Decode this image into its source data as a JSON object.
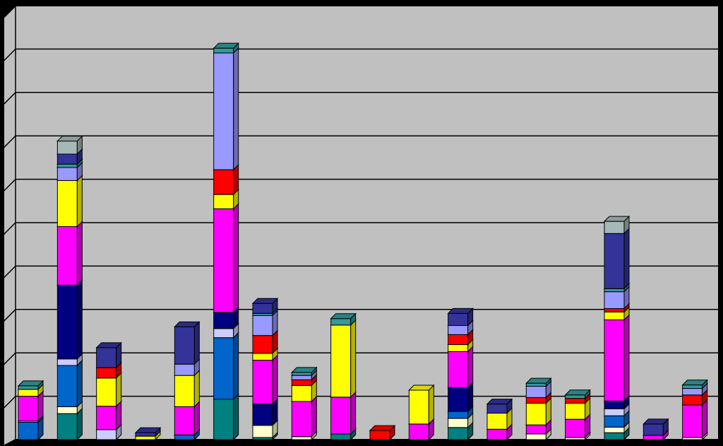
{
  "chart_data": {
    "type": "stacked-bar-3d",
    "categories": [
      null,
      null,
      null,
      null,
      null,
      null,
      null,
      null,
      null,
      null,
      null,
      null,
      null,
      null,
      null,
      null,
      null,
      null
    ],
    "ylim": [
      0,
      10
    ],
    "yticks": [
      0,
      1,
      2,
      3,
      4,
      5,
      6,
      7,
      8,
      9,
      10
    ],
    "grid": true,
    "tick_labels": false,
    "series": [
      {
        "color": "#008080",
        "values": [
          0,
          0.6,
          0,
          0,
          0,
          0.93,
          0.05,
          0,
          0.13,
          0,
          0,
          0.28,
          0,
          0,
          0,
          0.16,
          0,
          0
        ]
      },
      {
        "color": "#ffffcc",
        "values": [
          0,
          0.16,
          0,
          0,
          0,
          0,
          0.28,
          0.07,
          0,
          0,
          0,
          0.21,
          0,
          0.13,
          0.05,
          0.13,
          0,
          0.05
        ]
      },
      {
        "color": "#0066cc",
        "values": [
          0.4,
          0.95,
          0,
          0,
          0.11,
          1.42,
          0,
          0,
          0,
          0,
          0,
          0.16,
          0,
          0,
          0,
          0.26,
          0,
          0
        ]
      },
      {
        "color": "#ccccff",
        "values": [
          0.03,
          0.15,
          0.23,
          0,
          0,
          0.21,
          0,
          0,
          0,
          0,
          0,
          0,
          0,
          0,
          0,
          0.16,
          0,
          0
        ]
      },
      {
        "color": "#000080",
        "values": [
          0,
          1.7,
          0,
          0,
          0,
          0.37,
          0.49,
          0,
          0,
          0,
          0,
          0.55,
          0,
          0,
          0,
          0.18,
          0,
          0
        ]
      },
      {
        "color": "#ff00ff",
        "values": [
          0.57,
          1.35,
          0.54,
          0,
          0.65,
          2.39,
          1.01,
          0.81,
          0.85,
          0,
          0.36,
          0.83,
          0.24,
          0.21,
          0.42,
          1.87,
          0.1,
          0.75
        ]
      },
      {
        "color": "#ffff00",
        "values": [
          0.16,
          1.06,
          0.65,
          0.08,
          0.72,
          0.33,
          0.16,
          0.37,
          1.66,
          0,
          0.78,
          0.16,
          0.37,
          0.5,
          0.37,
          0.18,
          0,
          0
        ]
      },
      {
        "color": "#ff0000",
        "values": [
          0,
          0,
          0.24,
          0,
          0,
          0.57,
          0.41,
          0.13,
          0,
          0.21,
          0,
          0.23,
          0,
          0.13,
          0.11,
          0.08,
          0,
          0.23
        ]
      },
      {
        "color": "#9999ff",
        "values": [
          0,
          0.3,
          0,
          0,
          0.26,
          2.69,
          0.46,
          0.1,
          0,
          0,
          0,
          0.21,
          0,
          0.26,
          0,
          0.39,
          0,
          0.15
        ]
      },
      {
        "color": "#339999",
        "values": [
          0.08,
          0.08,
          0,
          0,
          0,
          0.11,
          0.05,
          0.07,
          0.15,
          0,
          0,
          0,
          0,
          0.07,
          0.08,
          0.07,
          0,
          0.08
        ]
      },
      {
        "color": "#333399",
        "values": [
          0,
          0.23,
          0.46,
          0.08,
          0.86,
          0,
          0.23,
          0,
          0,
          0,
          0,
          0.28,
          0.21,
          0,
          0,
          1.27,
          0.26,
          0
        ]
      },
      {
        "color": "#a6b8b8",
        "values": [
          0,
          0.3,
          0,
          0,
          0,
          0,
          0,
          0,
          0,
          0,
          0,
          0,
          0,
          0,
          0,
          0.28,
          0,
          0
        ]
      }
    ]
  }
}
